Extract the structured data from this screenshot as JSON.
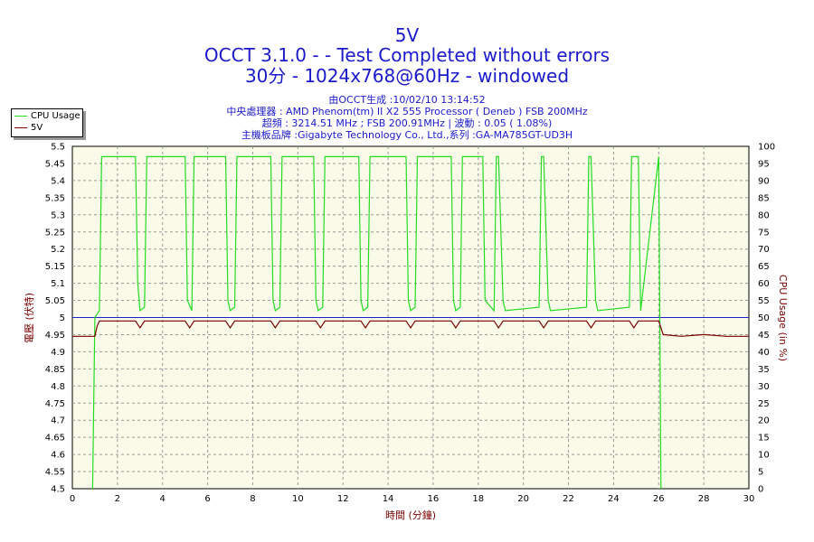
{
  "title_lines": [
    "5V",
    "OCCT 3.1.0 -  - Test Completed without errors",
    "30分 - 1024x768@60Hz - windowed"
  ],
  "info_lines": [
    "由OCCT生成 :10/02/10 13:14:52",
    "中央處理器 : AMD Phenom(tm) II X2 555 Processor ( Deneb ) FSB 200MHz",
    "超頻 : 3214.51 MHz ; FSB 200.91MHz | 波動 : 0.05 ( 1.08%)",
    "主機板品牌 :Gigabyte Technology Co., Ltd.,系列 :GA-MA785GT-UD3H"
  ],
  "colors": {
    "cpu": "#22dd22",
    "volt": "#7a0000",
    "text_blue": "#1a1acc",
    "plot_bg": "#fafae8",
    "ref": "#2020cc"
  },
  "chart_data": {
    "type": "line",
    "xlabel": "時間 (分鐘)",
    "ylabel_left": "電壓 (伏特)",
    "ylabel_right": "CPU Usage (in %)",
    "xlim": [
      0,
      30
    ],
    "ylim_left": [
      4.5,
      5.5
    ],
    "ylim_right": [
      0,
      100
    ],
    "x_ticks": [
      "0",
      "2",
      "4",
      "6",
      "8",
      "10",
      "12",
      "14",
      "16",
      "18",
      "20",
      "22",
      "24",
      "26",
      "28",
      "30"
    ],
    "y_left_ticks": [
      "4.5",
      "4.55",
      "4.6",
      "4.65",
      "4.7",
      "4.75",
      "4.8",
      "4.85",
      "4.9",
      "4.95",
      "5",
      "5.05",
      "5.1",
      "5.15",
      "5.2",
      "5.25",
      "5.3",
      "5.35",
      "5.4",
      "5.45",
      "5.5"
    ],
    "y_right_ticks": [
      "0",
      "5",
      "10",
      "15",
      "20",
      "25",
      "30",
      "35",
      "40",
      "45",
      "50",
      "55",
      "60",
      "65",
      "70",
      "75",
      "80",
      "85",
      "90",
      "95",
      "100"
    ],
    "grid": true,
    "legend": "top-left, outside plot",
    "reference_line": 5.0,
    "series": [
      {
        "name": "CPU Usage",
        "axis": "right",
        "x": [
          0.9,
          1.0,
          1.2,
          1.3,
          1.5,
          2.8,
          2.9,
          3.0,
          3.2,
          3.3,
          5.0,
          5.1,
          5.3,
          5.4,
          6.8,
          6.9,
          7.0,
          7.2,
          7.3,
          8.8,
          8.9,
          9.0,
          9.2,
          9.3,
          9.7,
          10.7,
          10.8,
          10.9,
          11.1,
          11.2,
          12.7,
          12.8,
          12.9,
          13.1,
          13.2,
          14.8,
          14.9,
          15.0,
          15.2,
          15.3,
          16.8,
          16.9,
          17.0,
          17.2,
          17.3,
          18.2,
          18.3,
          18.7,
          18.8,
          18.9,
          19.1,
          19.2,
          20.7,
          20.8,
          20.9,
          21.1,
          21.2,
          22.8,
          22.9,
          23.0,
          23.2,
          23.3,
          24.7,
          24.8,
          24.9,
          25.1,
          25.2,
          26.0,
          26.1
        ],
        "values": [
          0,
          50,
          52,
          97,
          97,
          97,
          60,
          52,
          53,
          97,
          97,
          55,
          52,
          97,
          97,
          55,
          52,
          53,
          97,
          97,
          55,
          52,
          53,
          97,
          97,
          97,
          55,
          52,
          53,
          97,
          97,
          55,
          52,
          53,
          97,
          97,
          55,
          52,
          53,
          97,
          97,
          55,
          52,
          53,
          97,
          97,
          55,
          52,
          97,
          97,
          55,
          52,
          53,
          97,
          97,
          55,
          52,
          53,
          97,
          97,
          55,
          52,
          53,
          97,
          97,
          97,
          52,
          97,
          0
        ]
      },
      {
        "name": "5V",
        "axis": "left",
        "x": [
          0.0,
          1.0,
          1.1,
          1.2,
          2.8,
          3.0,
          3.2,
          5.0,
          5.2,
          5.4,
          6.8,
          7.0,
          7.2,
          8.8,
          9.0,
          9.2,
          10.8,
          11.0,
          11.2,
          12.8,
          13.0,
          13.2,
          14.8,
          15.0,
          15.2,
          16.8,
          17.0,
          17.2,
          18.7,
          18.9,
          19.1,
          20.7,
          20.9,
          21.1,
          22.8,
          23.0,
          23.2,
          24.7,
          24.9,
          25.1,
          26.0,
          26.2,
          27.0,
          28.0,
          29.0,
          30.0
        ],
        "values": [
          4.945,
          4.945,
          4.975,
          4.99,
          4.99,
          4.97,
          4.99,
          4.99,
          4.97,
          4.99,
          4.99,
          4.97,
          4.99,
          4.99,
          4.97,
          4.99,
          4.99,
          4.97,
          4.99,
          4.99,
          4.97,
          4.99,
          4.99,
          4.97,
          4.99,
          4.99,
          4.97,
          4.99,
          4.99,
          4.97,
          4.99,
          4.99,
          4.97,
          4.99,
          4.99,
          4.97,
          4.99,
          4.99,
          4.97,
          4.99,
          4.99,
          4.95,
          4.945,
          4.95,
          4.945,
          4.945
        ]
      }
    ]
  }
}
